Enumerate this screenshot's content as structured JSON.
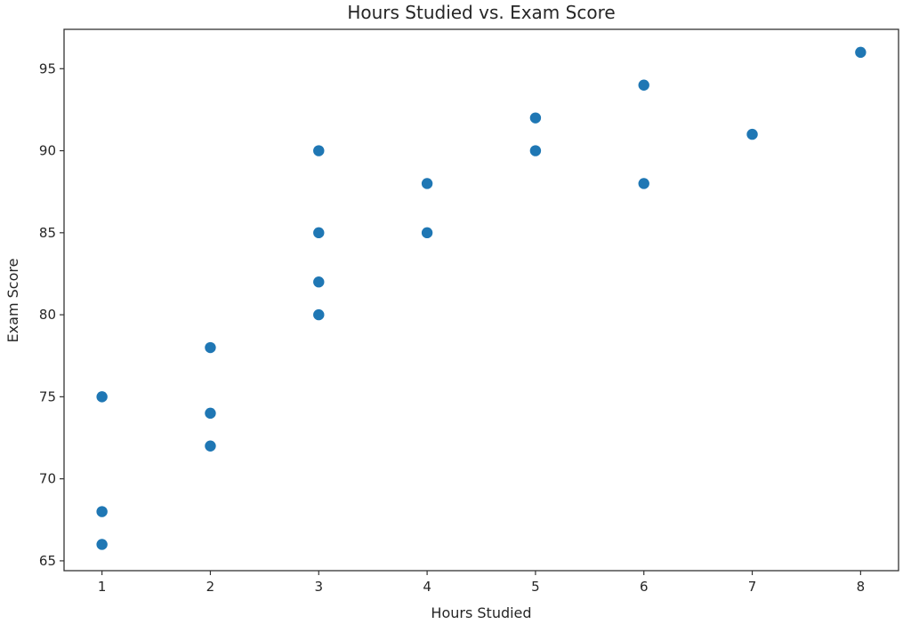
{
  "chart_data": {
    "type": "scatter",
    "title": "Hours Studied vs. Exam Score",
    "xlabel": "Hours Studied",
    "ylabel": "Exam Score",
    "xlim": [
      0.65,
      8.35
    ],
    "ylim": [
      64.4,
      97.4
    ],
    "xticks": [
      1,
      2,
      3,
      4,
      5,
      6,
      7,
      8
    ],
    "yticks": [
      65,
      70,
      75,
      80,
      85,
      90,
      95
    ],
    "grid": false,
    "legend": null,
    "marker_color": "#1f77b4",
    "series": [
      {
        "name": "data",
        "points": [
          {
            "x": 1,
            "y": 75
          },
          {
            "x": 1,
            "y": 68
          },
          {
            "x": 1,
            "y": 66
          },
          {
            "x": 2,
            "y": 78
          },
          {
            "x": 2,
            "y": 74
          },
          {
            "x": 2,
            "y": 72
          },
          {
            "x": 3,
            "y": 90
          },
          {
            "x": 3,
            "y": 85
          },
          {
            "x": 3,
            "y": 82
          },
          {
            "x": 3,
            "y": 80
          },
          {
            "x": 4,
            "y": 88
          },
          {
            "x": 4,
            "y": 85
          },
          {
            "x": 5,
            "y": 92
          },
          {
            "x": 5,
            "y": 90
          },
          {
            "x": 6,
            "y": 94
          },
          {
            "x": 6,
            "y": 88
          },
          {
            "x": 7,
            "y": 91
          },
          {
            "x": 8,
            "y": 96
          }
        ]
      }
    ]
  }
}
